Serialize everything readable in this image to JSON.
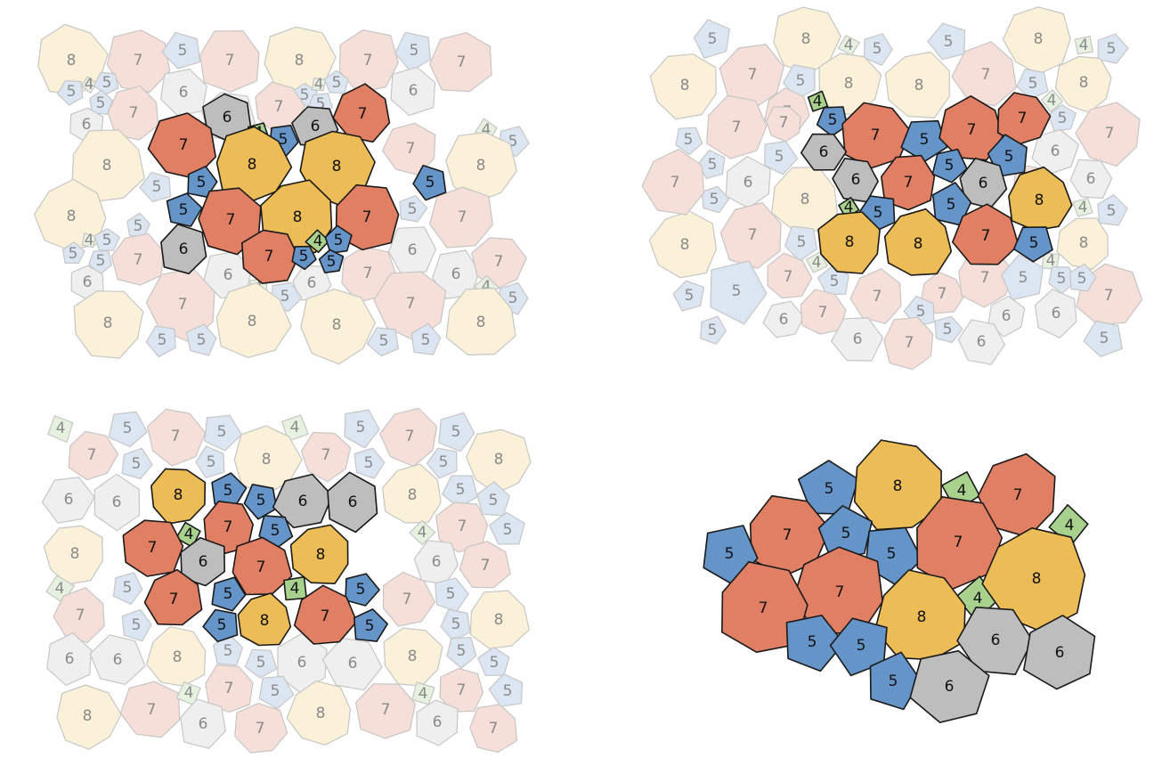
{
  "palette": {
    "4": "#a9d18e",
    "5": "#6594c8",
    "6": "#bdbdbd",
    "7": "#e07f63",
    "8": "#ecbd57"
  },
  "faded_palette": {
    "4": "#e7f1df",
    "5": "#dce6f2",
    "6": "#efefef",
    "7": "#f6dfd8",
    "8": "#fbf1d9"
  },
  "panels": [
    {
      "name": "top-left",
      "cells": [
        {
          "sides": 8,
          "hl": false
        },
        {
          "sides": 7,
          "hl": false
        },
        {
          "sides": 5,
          "hl": false
        },
        {
          "sides": 7,
          "hl": false
        },
        {
          "sides": 8,
          "hl": false
        },
        {
          "sides": 7,
          "hl": false
        },
        {
          "sides": 5,
          "hl": false
        },
        {
          "sides": 7,
          "hl": false
        },
        {
          "sides": 5,
          "hl": false
        },
        {
          "sides": 4,
          "hl": false
        },
        {
          "sides": 5,
          "hl": false
        },
        {
          "sides": 5,
          "hl": false
        },
        {
          "sides": 6,
          "hl": false
        },
        {
          "sides": 7,
          "hl": false
        },
        {
          "sides": 6,
          "hl": false
        },
        {
          "sides": 5,
          "hl": false
        },
        {
          "sides": 4,
          "hl": false
        },
        {
          "sides": 5,
          "hl": false
        },
        {
          "sides": 5,
          "hl": false
        },
        {
          "sides": 6,
          "hl": false
        },
        {
          "sides": 6,
          "hl": false
        },
        {
          "sides": 7,
          "hl": false
        },
        {
          "sides": 6,
          "hl": true
        },
        {
          "sides": 4,
          "hl": true
        },
        {
          "sides": 5,
          "hl": true
        },
        {
          "sides": 6,
          "hl": true
        },
        {
          "sides": 7,
          "hl": true
        },
        {
          "sides": 4,
          "hl": false
        },
        {
          "sides": 5,
          "hl": false
        },
        {
          "sides": 7,
          "hl": true
        },
        {
          "sides": 8,
          "hl": true
        },
        {
          "sides": 8,
          "hl": true
        },
        {
          "sides": 7,
          "hl": false
        },
        {
          "sides": 8,
          "hl": false
        },
        {
          "sides": 8,
          "hl": false
        },
        {
          "sides": 5,
          "hl": false
        },
        {
          "sides": 5,
          "hl": true
        },
        {
          "sides": 5,
          "hl": true
        },
        {
          "sides": 5,
          "hl": false
        },
        {
          "sides": 8,
          "hl": false
        },
        {
          "sides": 5,
          "hl": true
        },
        {
          "sides": 7,
          "hl": true
        },
        {
          "sides": 8,
          "hl": true
        },
        {
          "sides": 7,
          "hl": true
        },
        {
          "sides": 5,
          "hl": false
        },
        {
          "sides": 7,
          "hl": false
        },
        {
          "sides": 5,
          "hl": false
        },
        {
          "sides": 4,
          "hl": false
        },
        {
          "sides": 5,
          "hl": false
        },
        {
          "sides": 5,
          "hl": false
        },
        {
          "sides": 7,
          "hl": false
        },
        {
          "sides": 6,
          "hl": true
        },
        {
          "sides": 7,
          "hl": true
        },
        {
          "sides": 4,
          "hl": true
        },
        {
          "sides": 5,
          "hl": true
        },
        {
          "sides": 5,
          "hl": true
        },
        {
          "sides": 5,
          "hl": true
        },
        {
          "sides": 6,
          "hl": false
        },
        {
          "sides": 7,
          "hl": false
        },
        {
          "sides": 6,
          "hl": false
        },
        {
          "sides": 6,
          "hl": false
        },
        {
          "sides": 6,
          "hl": false
        },
        {
          "sides": 4,
          "hl": false
        },
        {
          "sides": 5,
          "hl": false
        },
        {
          "sides": 6,
          "hl": false
        },
        {
          "sides": 7,
          "hl": false
        },
        {
          "sides": 4,
          "hl": false
        },
        {
          "sides": 5,
          "hl": false
        },
        {
          "sides": 8,
          "hl": false
        },
        {
          "sides": 7,
          "hl": false
        },
        {
          "sides": 8,
          "hl": false
        },
        {
          "sides": 8,
          "hl": false
        },
        {
          "sides": 7,
          "hl": false
        },
        {
          "sides": 8,
          "hl": false
        },
        {
          "sides": 5,
          "hl": false
        },
        {
          "sides": 5,
          "hl": false
        },
        {
          "sides": 5,
          "hl": false
        },
        {
          "sides": 5,
          "hl": false
        }
      ]
    },
    {
      "name": "top-right",
      "cells": [
        {
          "sides": 5,
          "hl": false
        },
        {
          "sides": 8,
          "hl": false
        },
        {
          "sides": 4,
          "hl": false
        },
        {
          "sides": 5,
          "hl": false
        },
        {
          "sides": 5,
          "hl": false
        },
        {
          "sides": 8,
          "hl": false
        },
        {
          "sides": 4,
          "hl": false
        },
        {
          "sides": 5,
          "hl": false
        },
        {
          "sides": 8,
          "hl": false
        },
        {
          "sides": 7,
          "hl": false
        },
        {
          "sides": 5,
          "hl": false
        },
        {
          "sides": 8,
          "hl": false
        },
        {
          "sides": 8,
          "hl": false
        },
        {
          "sides": 7,
          "hl": false
        },
        {
          "sides": 5,
          "hl": false
        },
        {
          "sides": 8,
          "hl": false
        },
        {
          "sides": 4,
          "hl": true
        },
        {
          "sides": 7,
          "hl": false
        },
        {
          "sides": 4,
          "hl": false
        },
        {
          "sides": 7,
          "hl": false
        },
        {
          "sides": 5,
          "hl": true
        },
        {
          "sides": 7,
          "hl": true
        },
        {
          "sides": 5,
          "hl": true
        },
        {
          "sides": 7,
          "hl": true
        },
        {
          "sides": 7,
          "hl": true
        },
        {
          "sides": 5,
          "hl": false
        },
        {
          "sides": 5,
          "hl": false
        },
        {
          "sides": 7,
          "hl": false
        },
        {
          "sides": 7,
          "hl": false
        },
        {
          "sides": 6,
          "hl": true
        },
        {
          "sides": 5,
          "hl": true
        },
        {
          "sides": 5,
          "hl": true
        },
        {
          "sides": 6,
          "hl": false
        },
        {
          "sides": 5,
          "hl": false
        },
        {
          "sides": 5,
          "hl": false
        },
        {
          "sides": 6,
          "hl": false
        },
        {
          "sides": 6,
          "hl": true
        },
        {
          "sides": 7,
          "hl": true
        },
        {
          "sides": 6,
          "hl": true
        },
        {
          "sides": 7,
          "hl": false
        },
        {
          "sides": 8,
          "hl": true
        },
        {
          "sides": 6,
          "hl": false
        },
        {
          "sides": 5,
          "hl": false
        },
        {
          "sides": 8,
          "hl": false
        },
        {
          "sides": 4,
          "hl": true
        },
        {
          "sides": 5,
          "hl": true
        },
        {
          "sides": 5,
          "hl": true
        },
        {
          "sides": 4,
          "hl": false
        },
        {
          "sides": 5,
          "hl": false
        },
        {
          "sides": 8,
          "hl": false
        },
        {
          "sides": 7,
          "hl": false
        },
        {
          "sides": 5,
          "hl": false
        },
        {
          "sides": 8,
          "hl": true
        },
        {
          "sides": 8,
          "hl": true
        },
        {
          "sides": 7,
          "hl": true
        },
        {
          "sides": 5,
          "hl": true
        },
        {
          "sides": 8,
          "hl": false
        },
        {
          "sides": 4,
          "hl": false
        },
        {
          "sides": 4,
          "hl": false
        },
        {
          "sides": 5,
          "hl": false
        },
        {
          "sides": 7,
          "hl": false
        },
        {
          "sides": 7,
          "hl": false
        },
        {
          "sides": 5,
          "hl": false
        },
        {
          "sides": 7,
          "hl": false
        },
        {
          "sides": 7,
          "hl": false
        },
        {
          "sides": 7,
          "hl": false
        },
        {
          "sides": 5,
          "hl": false
        },
        {
          "sides": 7,
          "hl": false
        },
        {
          "sides": 5,
          "hl": false
        },
        {
          "sides": 5,
          "hl": false
        },
        {
          "sides": 6,
          "hl": false
        },
        {
          "sides": 5,
          "hl": false
        },
        {
          "sides": 5,
          "hl": false
        },
        {
          "sides": 6,
          "hl": false
        },
        {
          "sides": 7,
          "hl": false
        },
        {
          "sides": 5,
          "hl": false
        },
        {
          "sides": 6,
          "hl": false
        },
        {
          "sides": 6,
          "hl": false
        },
        {
          "sides": 7,
          "hl": false
        },
        {
          "sides": 6,
          "hl": false
        },
        {
          "sides": 5,
          "hl": false
        },
        {
          "sides": 5,
          "hl": false
        }
      ]
    },
    {
      "name": "bottom-left",
      "cells": [
        {
          "sides": 4,
          "hl": false
        },
        {
          "sides": 5,
          "hl": false
        },
        {
          "sides": 7,
          "hl": false
        },
        {
          "sides": 5,
          "hl": false
        },
        {
          "sides": 4,
          "hl": false
        },
        {
          "sides": 5,
          "hl": false
        },
        {
          "sides": 7,
          "hl": false
        },
        {
          "sides": 5,
          "hl": false
        },
        {
          "sides": 7,
          "hl": false
        },
        {
          "sides": 5,
          "hl": false
        },
        {
          "sides": 5,
          "hl": false
        },
        {
          "sides": 8,
          "hl": false
        },
        {
          "sides": 7,
          "hl": false
        },
        {
          "sides": 5,
          "hl": false
        },
        {
          "sides": 5,
          "hl": false
        },
        {
          "sides": 8,
          "hl": false
        },
        {
          "sides": 6,
          "hl": false
        },
        {
          "sides": 6,
          "hl": false
        },
        {
          "sides": 8,
          "hl": true
        },
        {
          "sides": 5,
          "hl": true
        },
        {
          "sides": 5,
          "hl": true
        },
        {
          "sides": 6,
          "hl": true
        },
        {
          "sides": 6,
          "hl": true
        },
        {
          "sides": 8,
          "hl": false
        },
        {
          "sides": 5,
          "hl": false
        },
        {
          "sides": 5,
          "hl": false
        },
        {
          "sides": 4,
          "hl": true
        },
        {
          "sides": 7,
          "hl": true
        },
        {
          "sides": 5,
          "hl": true
        },
        {
          "sides": 4,
          "hl": false
        },
        {
          "sides": 7,
          "hl": false
        },
        {
          "sides": 5,
          "hl": false
        },
        {
          "sides": 8,
          "hl": false
        },
        {
          "sides": 7,
          "hl": true
        },
        {
          "sides": 6,
          "hl": true
        },
        {
          "sides": 7,
          "hl": true
        },
        {
          "sides": 8,
          "hl": true
        },
        {
          "sides": 6,
          "hl": false
        },
        {
          "sides": 7,
          "hl": false
        },
        {
          "sides": 4,
          "hl": false
        },
        {
          "sides": 5,
          "hl": false
        },
        {
          "sides": 7,
          "hl": true
        },
        {
          "sides": 5,
          "hl": true
        },
        {
          "sides": 4,
          "hl": true
        },
        {
          "sides": 5,
          "hl": true
        },
        {
          "sides": 7,
          "hl": false
        },
        {
          "sides": 5,
          "hl": false
        },
        {
          "sides": 7,
          "hl": false
        },
        {
          "sides": 5,
          "hl": false
        },
        {
          "sides": 5,
          "hl": true
        },
        {
          "sides": 8,
          "hl": true
        },
        {
          "sides": 7,
          "hl": true
        },
        {
          "sides": 5,
          "hl": true
        },
        {
          "sides": 5,
          "hl": false
        },
        {
          "sides": 8,
          "hl": false
        },
        {
          "sides": 6,
          "hl": false
        },
        {
          "sides": 6,
          "hl": false
        },
        {
          "sides": 8,
          "hl": false
        },
        {
          "sides": 5,
          "hl": false
        },
        {
          "sides": 5,
          "hl": false
        },
        {
          "sides": 6,
          "hl": false
        },
        {
          "sides": 6,
          "hl": false
        },
        {
          "sides": 8,
          "hl": false
        },
        {
          "sides": 5,
          "hl": false
        },
        {
          "sides": 5,
          "hl": false
        },
        {
          "sides": 8,
          "hl": false
        },
        {
          "sides": 7,
          "hl": false
        },
        {
          "sides": 4,
          "hl": false
        },
        {
          "sides": 7,
          "hl": false
        },
        {
          "sides": 5,
          "hl": false
        },
        {
          "sides": 8,
          "hl": false
        },
        {
          "sides": 7,
          "hl": false
        },
        {
          "sides": 4,
          "hl": false
        },
        {
          "sides": 7,
          "hl": false
        },
        {
          "sides": 5,
          "hl": false
        },
        {
          "sides": 6,
          "hl": false
        },
        {
          "sides": 7,
          "hl": false
        },
        {
          "sides": 6,
          "hl": false
        },
        {
          "sides": 7,
          "hl": false
        }
      ]
    },
    {
      "name": "bottom-right",
      "cells": [
        {
          "sides": 5,
          "hl": true
        },
        {
          "sides": 8,
          "hl": true
        },
        {
          "sides": 4,
          "hl": true
        },
        {
          "sides": 7,
          "hl": true
        },
        {
          "sides": 4,
          "hl": true
        },
        {
          "sides": 7,
          "hl": true
        },
        {
          "sides": 5,
          "hl": true
        },
        {
          "sides": 5,
          "hl": true
        },
        {
          "sides": 7,
          "hl": true
        },
        {
          "sides": 5,
          "hl": true
        },
        {
          "sides": 7,
          "hl": true
        },
        {
          "sides": 7,
          "hl": true
        },
        {
          "sides": 4,
          "hl": true
        },
        {
          "sides": 8,
          "hl": true
        },
        {
          "sides": 8,
          "hl": true
        },
        {
          "sides": 5,
          "hl": true
        },
        {
          "sides": 5,
          "hl": true
        },
        {
          "sides": 6,
          "hl": true
        },
        {
          "sides": 6,
          "hl": true
        },
        {
          "sides": 5,
          "hl": true
        },
        {
          "sides": 6,
          "hl": true
        }
      ]
    }
  ]
}
